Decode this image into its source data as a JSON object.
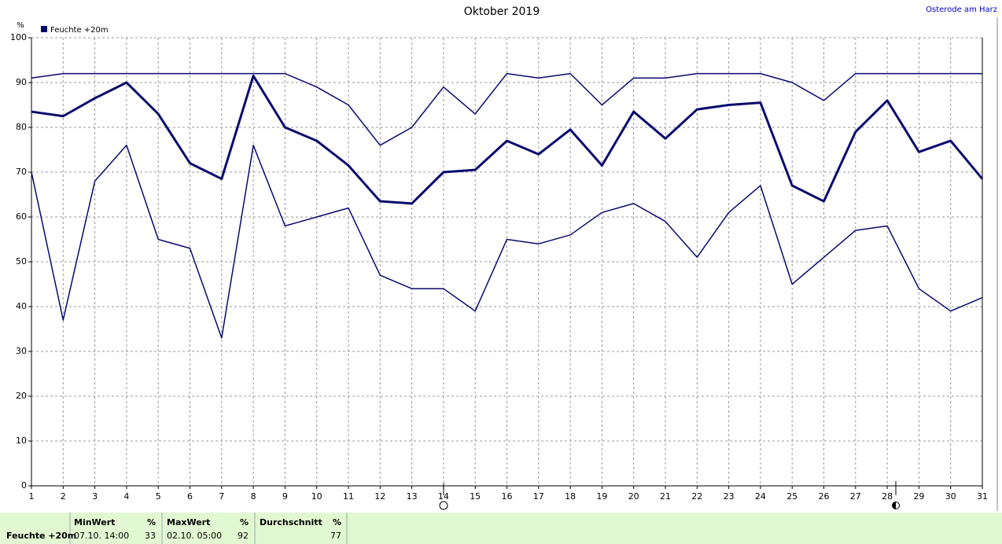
{
  "chart_data": {
    "type": "line",
    "title": "Oktober 2019",
    "location": "Osterode am Harz",
    "y_unit": "%",
    "x": [
      1,
      2,
      3,
      4,
      5,
      6,
      7,
      8,
      9,
      10,
      11,
      12,
      13,
      14,
      15,
      16,
      17,
      18,
      19,
      20,
      21,
      22,
      23,
      24,
      25,
      26,
      27,
      28,
      29,
      30,
      31
    ],
    "xlim": [
      1,
      31
    ],
    "xticks": [
      1,
      2,
      3,
      4,
      5,
      6,
      7,
      8,
      9,
      10,
      11,
      12,
      13,
      14,
      15,
      16,
      17,
      18,
      19,
      20,
      21,
      22,
      23,
      24,
      25,
      26,
      27,
      28,
      29,
      30,
      31
    ],
    "ylim": [
      0,
      100
    ],
    "yticks": [
      0,
      10,
      20,
      30,
      40,
      50,
      60,
      70,
      80,
      90,
      100
    ],
    "grid": true,
    "series": [
      {
        "name": "Feuchte +20m",
        "color": "#0a0a6e",
        "values": [
          83.5,
          82.5,
          86.5,
          90,
          83,
          72,
          68.5,
          91.5,
          80,
          77,
          71.5,
          63.5,
          63,
          70,
          70.5,
          77,
          74,
          79.5,
          71.5,
          83.5,
          77.5,
          84,
          85,
          85.5,
          67,
          63.5,
          79,
          86,
          74.5,
          77,
          68.5
        ]
      },
      {
        "color": "#0a0a6e",
        "values": [
          91,
          92,
          92,
          92,
          92,
          92,
          92,
          92,
          92,
          89,
          85,
          76,
          80,
          89,
          83,
          92,
          91,
          92,
          85,
          91,
          91,
          92,
          92,
          92,
          90,
          86,
          92,
          92,
          92,
          92,
          92
        ]
      },
      {
        "color": "#0a0a6e",
        "values": [
          70,
          37,
          68,
          76,
          55,
          53,
          33,
          76,
          58,
          60,
          62,
          47,
          44,
          44,
          39,
          55,
          54,
          56,
          61,
          63,
          59,
          51,
          61,
          67,
          45,
          51,
          57,
          58,
          44,
          39,
          42
        ]
      }
    ]
  },
  "footer": {
    "row_label": "Feuchte +20m",
    "min": {
      "header": "MinWert",
      "unit": "%",
      "time": "07.10.  14:00",
      "value": 33
    },
    "max": {
      "header": "MaxWert",
      "unit": "%",
      "time": "02.10.  05:00",
      "value": 92
    },
    "avg": {
      "header": "Durchschnitt",
      "unit": "%",
      "value": 77
    }
  }
}
